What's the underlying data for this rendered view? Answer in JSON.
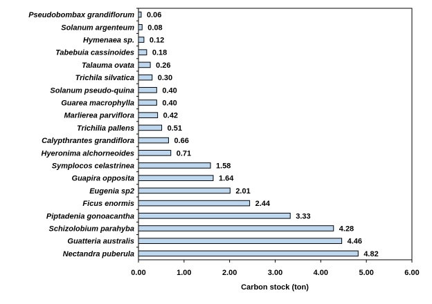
{
  "chart_data": {
    "type": "bar",
    "orientation": "horizontal",
    "categories": [
      "Pseudobombax grandiflorum",
      "Solanum argenteum",
      "Hymenaea sp.",
      "Tabebuia cassinoides",
      "Talauma ovata",
      "Trichila silvatica",
      "Solanum pseudo-quina",
      "Guarea macrophylla",
      "Marlierea parviflora",
      "Trichilia pallens",
      "Calypthrantes grandiflora",
      "Hyeronima alchorneoides",
      "Symplocos celastrinea",
      "Guapira opposita",
      "Eugenia sp2",
      "Ficus enormis",
      "Piptadenia gonoacantha",
      "Schizolobium parahyba",
      "Guatteria australis",
      "Nectandra puberula"
    ],
    "values": [
      0.06,
      0.08,
      0.12,
      0.18,
      0.26,
      0.3,
      0.4,
      0.4,
      0.42,
      0.51,
      0.66,
      0.71,
      1.58,
      1.64,
      2.01,
      2.44,
      3.33,
      4.28,
      4.46,
      4.82
    ],
    "value_labels": [
      "0.06",
      "0.08",
      "0.12",
      "0.18",
      "0.26",
      "0.30",
      "0.40",
      "0.40",
      "0.42",
      "0.51",
      "0.66",
      "0.71",
      "1.58",
      "1.64",
      "2.01",
      "2.44",
      "3.33",
      "4.28",
      "4.46",
      "4.82"
    ],
    "xlabel": "Carbon stock (ton)",
    "ylabel": "",
    "title": "",
    "xlim": [
      0,
      6
    ],
    "xticks": [
      0,
      1,
      2,
      3,
      4,
      5,
      6
    ],
    "xtick_labels": [
      "0.00",
      "1.00",
      "2.00",
      "3.00",
      "4.00",
      "5.00",
      "6.00"
    ],
    "grid": false,
    "bar_color": "#bdd7ee",
    "bar_edge_color": "#000000"
  }
}
